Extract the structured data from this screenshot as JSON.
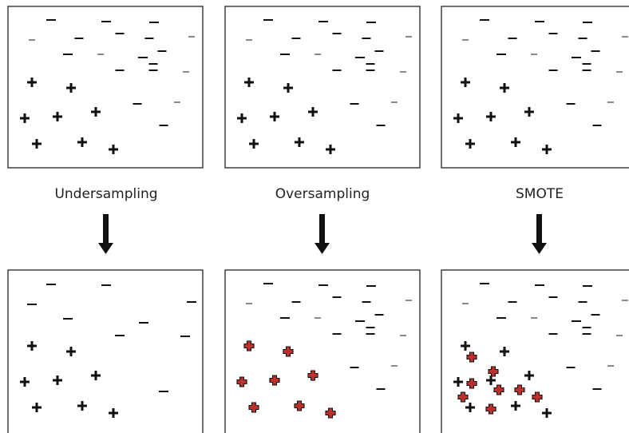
{
  "panels": [
    {
      "label": "Undersampling"
    },
    {
      "label": "Oversampling"
    },
    {
      "label": "SMOTE"
    }
  ]
}
